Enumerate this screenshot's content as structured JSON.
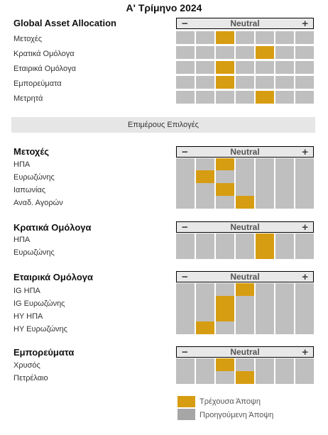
{
  "title": "Α' Τρίμηνο 2024",
  "scale": {
    "minus": "−",
    "neutral": "Neutral",
    "plus": "+"
  },
  "separator": "Επιμέρους Επιλογές",
  "colors": {
    "current": "#d79d12",
    "previous": "#a6a6a6",
    "empty": "#bfbfbf"
  },
  "sections": [
    {
      "title": "Global Asset Allocation",
      "rows": [
        {
          "label": "Μετοχές",
          "current": 3
        },
        {
          "label": "Κρατικά Ομόλογα",
          "current": 5
        },
        {
          "label": "Εταιρικά Ομόλογα",
          "current": 3
        },
        {
          "label": "Εμπορεύματα",
          "current": 3
        },
        {
          "label": "Μετρητά",
          "current": 5
        }
      ]
    },
    {
      "title": "Μετοχές",
      "rows": [
        {
          "label": "ΗΠΑ",
          "current": 3
        },
        {
          "label": "Ευρωζώνης",
          "current": 2
        },
        {
          "label": "Ιαπωνίας",
          "current": 3
        },
        {
          "label": "Αναδ. Αγορών",
          "current": 4
        }
      ]
    },
    {
      "title": "Κρατικά Ομόλογα",
      "rows": [
        {
          "label": "ΗΠΑ",
          "current": 5
        },
        {
          "label": "Ευρωζώνης",
          "current": 5
        }
      ]
    },
    {
      "title": "Εταιρικά Ομόλογα",
      "rows": [
        {
          "label": "IG ΗΠΑ",
          "current": 4
        },
        {
          "label": "IG Ευρωζώνης",
          "current": 3
        },
        {
          "label": "HY ΗΠΑ",
          "current": 3
        },
        {
          "label": "HY Ευρωζώνης",
          "current": 2
        }
      ]
    },
    {
      "title": "Εμπορεύματα",
      "rows": [
        {
          "label": "Χρυσός",
          "current": 3
        },
        {
          "label": "Πετρέλαιο",
          "current": 4
        }
      ]
    }
  ],
  "legend": {
    "current": "Τρέχουσα Άποψη",
    "previous": "Προηγούμενη Άποψη"
  }
}
